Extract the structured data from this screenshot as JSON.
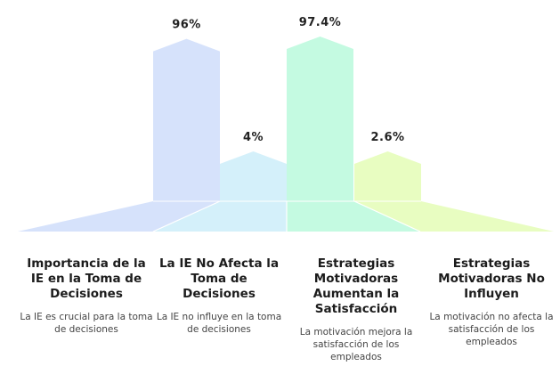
{
  "chart_data": {
    "type": "bar",
    "categories": [
      "Importancia de la IE en la Toma de Decisiones",
      "La IE No Afecta la Toma de Decisiones",
      "Estrategias Motivadoras Aumentan la Satisfacción",
      "Estrategias Motivadoras No Influyen"
    ],
    "values": [
      96,
      4,
      97.4,
      2.6
    ],
    "value_labels": [
      "96%",
      "4%",
      "97.4%",
      "2.6%"
    ],
    "colors": [
      "#d6e2fb",
      "#d4f0fa",
      "#c4fae1",
      "#e8fdc1"
    ],
    "descriptions": [
      "La IE es crucial para la toma de decisiones",
      "La IE no influye en la toma de decisiones",
      "La motivación mejora la satisfacción de los empleados",
      "La motivación no afecta la satisfacción de los empleados"
    ]
  }
}
